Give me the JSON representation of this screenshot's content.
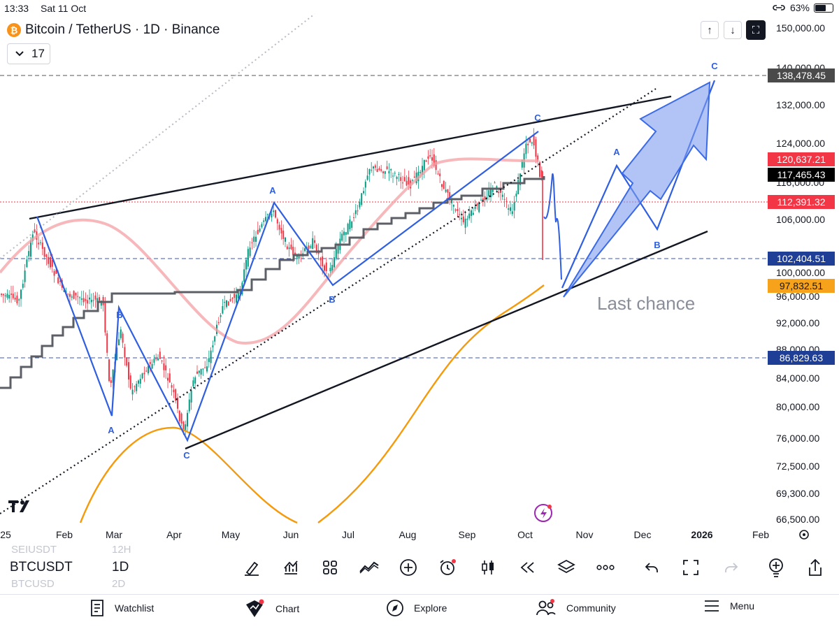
{
  "status": {
    "time": "13:33",
    "date": "Sat 11 Oct",
    "battery": "63%",
    "battery_level": 0.63
  },
  "header": {
    "symbol_title": "Bitcoin / TetherUS · 1D · Binance",
    "icon_glyph": "₿",
    "collapse_count": "17",
    "up_glyph": "↑",
    "down_glyph": "↓",
    "toolbar_glyph": "⛶"
  },
  "chart_data": {
    "type": "candlestick",
    "title": "Bitcoin / TetherUS · 1D · Binance",
    "y_axis_ticks": [
      "150,000.00",
      "140,000.00",
      "132,000.00",
      "124,000.00",
      "116,000.00",
      "106,000.00",
      "100,000.00",
      "96,000.00",
      "92,000.00",
      "88,000.00",
      "84,000.00",
      "80,000.00",
      "76,000.00",
      "72,500.00",
      "69,300.00",
      "66,500.00"
    ],
    "x_axis_ticks": [
      "25",
      "Feb",
      "Mar",
      "Apr",
      "May",
      "Jun",
      "Jul",
      "Aug",
      "Sep",
      "Oct",
      "Nov",
      "Dec",
      "2026",
      "Feb"
    ],
    "price_labels": [
      {
        "text": "138,478.45",
        "bg": "#4a4a4a",
        "color": "#ffffff"
      },
      {
        "text": "120,637.21",
        "bg": "#f23645",
        "color": "#ffffff"
      },
      {
        "text": "117,465.43",
        "bg": "#000000",
        "color": "#ffffff"
      },
      {
        "text": "112,391.32",
        "bg": "#f23645",
        "color": "#ffffff"
      },
      {
        "text": "102,404.51",
        "bg": "#1e3f95",
        "color": "#ffffff"
      },
      {
        "text": "97,832.51",
        "bg": "#f7a21b",
        "color": "#131722"
      },
      {
        "text": "86,829.63",
        "bg": "#1e3f95",
        "color": "#ffffff"
      }
    ],
    "wave_labels": [
      "A",
      "B",
      "C",
      "A",
      "B",
      "C",
      "A",
      "B",
      "C"
    ],
    "annotation": "Last chance",
    "logo": "TV"
  },
  "toolbar": {
    "symbol": "BTCUSDT",
    "interval": "1D",
    "ghost_symbol_above": "SEIUSDT",
    "ghost_interval_above": "12H",
    "ghost_symbol_below": "BTCUSD",
    "ghost_interval_below": "2D"
  },
  "nav": {
    "watchlist": "Watchlist",
    "chart": "Chart",
    "explore": "Explore",
    "community": "Community",
    "menu": "Menu"
  },
  "colors": {
    "accent_blue": "#2962ff",
    "wave_blue": "#2f5fe0",
    "orange": "#f59a0b",
    "red": "#f23645"
  }
}
